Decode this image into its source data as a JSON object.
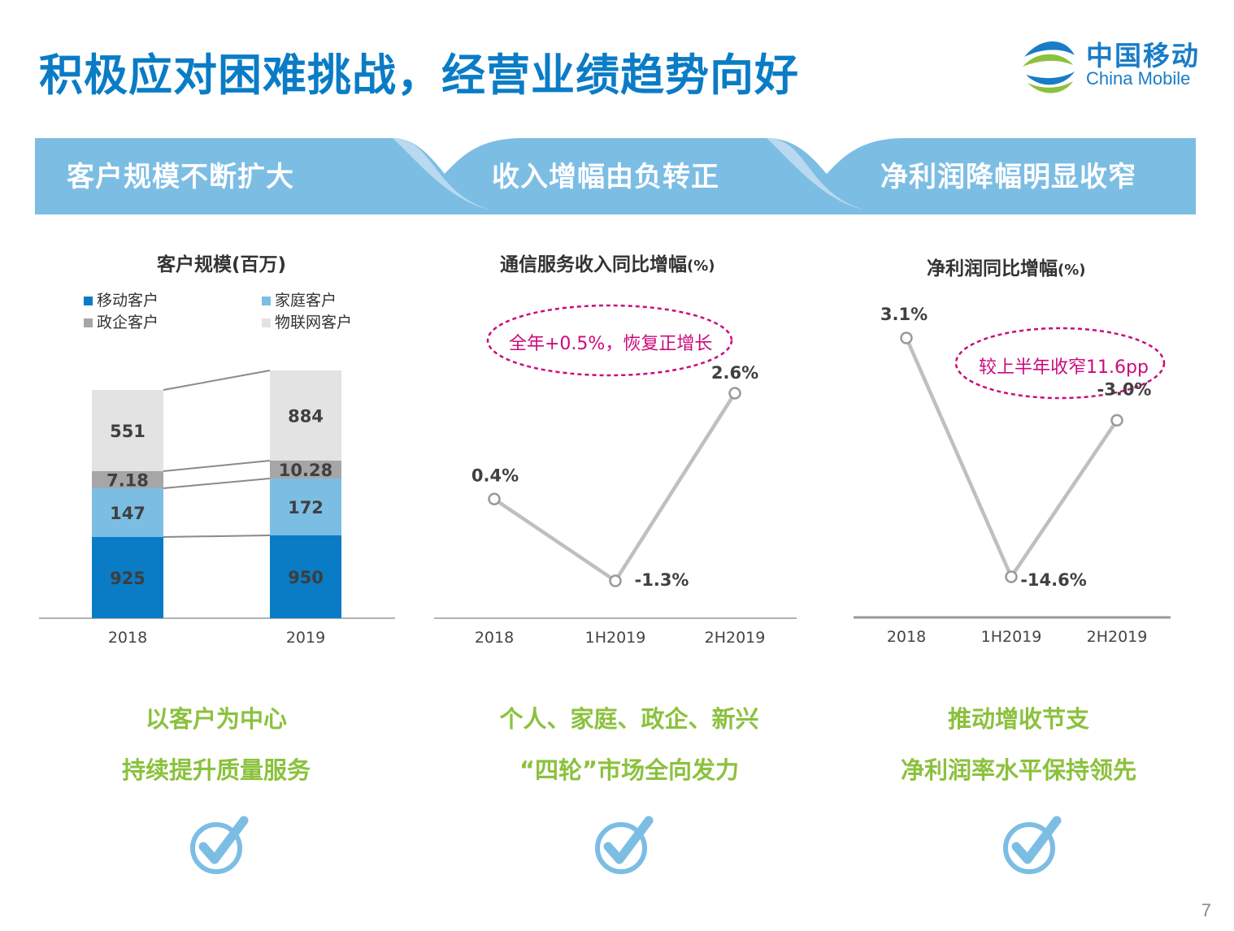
{
  "title": "积极应对困难挑战，经营业绩趋势向好",
  "logo": {
    "cn": "中国移动",
    "en": "China Mobile"
  },
  "banner": [
    "客户规模不断扩大",
    "收入增幅由负转正",
    "净利润降幅明显收窄"
  ],
  "charts": {
    "scale": {
      "title": "客户规模(百万)",
      "title_main": "客户规模",
      "title_unit": "(百万)"
    },
    "revenue": {
      "title_main": "通信服务收入同比增幅",
      "title_unit": "(%)",
      "callout": "全年+0.5%，恢复正增长"
    },
    "profit": {
      "title_main": "净利润同比增幅",
      "title_unit": "(%)",
      "callout": "较上半年收窄11.6pp"
    }
  },
  "chart_data": [
    {
      "type": "bar",
      "stacked": true,
      "title": "客户规模(百万)",
      "categories": [
        "2018",
        "2019"
      ],
      "series": [
        {
          "name": "移动客户",
          "values": [
            925,
            950
          ],
          "labels": [
            "925",
            "950"
          ],
          "color": "#0a7cc6"
        },
        {
          "name": "家庭客户",
          "values": [
            147,
            172
          ],
          "labels": [
            "147",
            "172"
          ],
          "color": "#7cbde4"
        },
        {
          "name": "政企客户",
          "values": [
            7.18,
            10.28
          ],
          "labels": [
            "7.18",
            "10.28"
          ],
          "color": "#a6a6a6"
        },
        {
          "name": "物联网客户",
          "values": [
            551,
            884
          ],
          "labels": [
            "551",
            "884"
          ],
          "color": "#e3e3e3"
        }
      ],
      "legend_position": "top"
    },
    {
      "type": "line",
      "title": "通信服务收入同比增幅(%)",
      "categories": [
        "2018",
        "1H2019",
        "2H2019"
      ],
      "values": [
        0.4,
        -1.3,
        2.6
      ],
      "labels": [
        "0.4%",
        "-1.3%",
        "2.6%"
      ],
      "color": "#bfbfbf"
    },
    {
      "type": "line",
      "title": "净利润同比增幅(%)",
      "categories": [
        "2018",
        "1H2019",
        "2H2019"
      ],
      "values": [
        3.1,
        -14.6,
        -3.0
      ],
      "labels": [
        "3.1%",
        "-14.6%",
        "-3.0%"
      ],
      "color": "#bfbfbf"
    }
  ],
  "slogans": [
    [
      "以客户为中心",
      "持续提升质量服务"
    ],
    [
      "个人、家庭、政企、新兴",
      "“四轮”市场全向发力"
    ],
    [
      "推动增收节支",
      "净利润率水平保持领先"
    ]
  ],
  "icons": [
    "check-circle-icon",
    "check-circle-icon",
    "check-circle-icon"
  ],
  "colors": {
    "brand_blue": "#0a7cc6",
    "banner_blue": "#7cbde4",
    "slogan_green": "#8bc13d",
    "callout_pink": "#cc0a7d"
  },
  "page_number": "7"
}
